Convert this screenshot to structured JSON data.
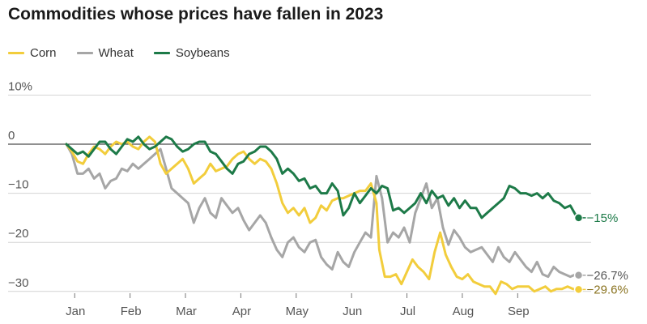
{
  "chart_data": {
    "type": "line",
    "title": "Commodities whose prices have fallen in 2023",
    "xlabel": "",
    "ylabel": "",
    "ylim": [
      -30,
      10
    ],
    "y_ticks": [
      10,
      0,
      -10,
      -20,
      -30
    ],
    "y_tick_labels": [
      "10%",
      "0",
      "−10",
      "−20",
      "−30"
    ],
    "x_range": [
      0,
      9.33
    ],
    "months": [
      "Jan",
      "Feb",
      "Mar",
      "Apr",
      "May",
      "Jun",
      "Jul",
      "Aug",
      "Sep"
    ],
    "series": [
      {
        "name": "Corn",
        "color": "#f2cd3c",
        "end_label": "−29.6%",
        "end_label_color": "#8a7320",
        "x": [
          0.0,
          0.1,
          0.2,
          0.3,
          0.4,
          0.5,
          0.6,
          0.7,
          0.8,
          0.9,
          1.0,
          1.1,
          1.2,
          1.3,
          1.4,
          1.5,
          1.6,
          1.7,
          1.8,
          1.9,
          2.0,
          2.1,
          2.2,
          2.3,
          2.4,
          2.5,
          2.6,
          2.7,
          2.8,
          2.9,
          3.0,
          3.1,
          3.2,
          3.3,
          3.4,
          3.5,
          3.6,
          3.7,
          3.8,
          3.9,
          4.0,
          4.1,
          4.2,
          4.3,
          4.4,
          4.5,
          4.6,
          4.7,
          4.8,
          4.9,
          5.0,
          5.1,
          5.2,
          5.3,
          5.4,
          5.5,
          5.6,
          5.65,
          5.75,
          5.85,
          5.95,
          6.05,
          6.15,
          6.25,
          6.35,
          6.45,
          6.55,
          6.65,
          6.75,
          6.85,
          6.95,
          7.05,
          7.15,
          7.25,
          7.35,
          7.45,
          7.55,
          7.65,
          7.75,
          7.85,
          7.95,
          8.05,
          8.15,
          8.25,
          8.35,
          8.45,
          8.55,
          8.65,
          8.75,
          8.85,
          8.95,
          9.05,
          9.15,
          9.25
        ],
        "values": [
          0.0,
          -1.5,
          -3.5,
          -4.0,
          -2.0,
          -0.5,
          -1.0,
          -2.0,
          -0.5,
          0.5,
          0.0,
          0.5,
          -0.5,
          -1.0,
          0.5,
          1.5,
          0.5,
          -4.0,
          -6.0,
          -5.0,
          -4.0,
          -3.0,
          -5.0,
          -8.0,
          -7.0,
          -6.0,
          -4.0,
          -5.5,
          -5.0,
          -4.5,
          -3.0,
          -2.0,
          -1.5,
          -3.0,
          -4.0,
          -3.0,
          -3.5,
          -5.0,
          -8.0,
          -12.0,
          -14.0,
          -13.0,
          -14.5,
          -13.0,
          -16.0,
          -15.0,
          -12.5,
          -13.5,
          -11.5,
          -11.0,
          -11.0,
          -10.5,
          -10.0,
          -9.5,
          -9.5,
          -8.0,
          -12.0,
          -21.5,
          -27.0,
          -27.0,
          -26.5,
          -28.5,
          -26.0,
          -23.5,
          -25.0,
          -26.0,
          -27.5,
          -22.0,
          -18.0,
          -22.5,
          -25.0,
          -27.0,
          -27.5,
          -26.5,
          -28.0,
          -28.5,
          -29.0,
          -29.0,
          -30.5,
          -28.0,
          -28.5,
          -29.5,
          -29.0,
          -29.0,
          -29.0,
          -30.0,
          -29.5,
          -29.0,
          -30.0,
          -29.5,
          -29.5,
          -29.0,
          -29.5,
          -29.6
        ]
      },
      {
        "name": "Wheat",
        "color": "#a6a6a6",
        "end_label": "−26.7%",
        "end_label_color": "#555555",
        "x": [
          0.0,
          0.1,
          0.2,
          0.3,
          0.4,
          0.5,
          0.6,
          0.7,
          0.8,
          0.9,
          1.0,
          1.1,
          1.2,
          1.3,
          1.4,
          1.5,
          1.6,
          1.7,
          1.8,
          1.9,
          2.0,
          2.1,
          2.2,
          2.3,
          2.4,
          2.5,
          2.6,
          2.7,
          2.8,
          2.9,
          3.0,
          3.1,
          3.2,
          3.3,
          3.4,
          3.5,
          3.6,
          3.7,
          3.8,
          3.9,
          4.0,
          4.1,
          4.2,
          4.3,
          4.4,
          4.5,
          4.6,
          4.7,
          4.8,
          4.9,
          5.0,
          5.1,
          5.2,
          5.3,
          5.4,
          5.5,
          5.6,
          5.7,
          5.8,
          5.9,
          6.0,
          6.1,
          6.2,
          6.3,
          6.4,
          6.5,
          6.6,
          6.7,
          6.8,
          6.9,
          7.0,
          7.1,
          7.2,
          7.3,
          7.4,
          7.5,
          7.6,
          7.7,
          7.8,
          7.9,
          8.0,
          8.1,
          8.2,
          8.3,
          8.4,
          8.5,
          8.6,
          8.7,
          8.8,
          8.9,
          9.0,
          9.1,
          9.2,
          9.25
        ],
        "values": [
          0.0,
          -2.0,
          -6.0,
          -6.0,
          -5.0,
          -7.0,
          -6.0,
          -9.0,
          -7.5,
          -7.0,
          -5.0,
          -5.5,
          -4.0,
          -5.0,
          -4.0,
          -3.0,
          -2.0,
          -1.0,
          -5.0,
          -9.0,
          -10.0,
          -11.0,
          -12.0,
          -16.0,
          -13.0,
          -11.0,
          -14.0,
          -15.0,
          -11.0,
          -12.5,
          -14.0,
          -13.0,
          -15.5,
          -17.5,
          -16.0,
          -14.5,
          -16.0,
          -19.0,
          -21.5,
          -23.0,
          -20.0,
          -19.0,
          -21.0,
          -22.0,
          -20.0,
          -19.5,
          -23.0,
          -24.5,
          -25.5,
          -22.0,
          -24.0,
          -25.0,
          -22.0,
          -20.0,
          -18.0,
          -19.0,
          -6.5,
          -11.0,
          -20.0,
          -18.0,
          -19.0,
          -17.0,
          -20.0,
          -14.0,
          -11.0,
          -8.0,
          -13.0,
          -11.0,
          -17.0,
          -20.5,
          -17.5,
          -19.0,
          -21.0,
          -22.0,
          -21.5,
          -21.0,
          -22.5,
          -24.0,
          -21.0,
          -23.0,
          -24.0,
          -22.0,
          -23.5,
          -25.0,
          -26.0,
          -24.0,
          -26.5,
          -27.0,
          -25.0,
          -26.0,
          -26.5,
          -27.0,
          -26.5,
          -26.7
        ]
      },
      {
        "name": "Soybeans",
        "color": "#1d7a48",
        "end_label": "−15%",
        "end_label_color": "#1d7a48",
        "x": [
          0.0,
          0.1,
          0.2,
          0.3,
          0.4,
          0.5,
          0.6,
          0.7,
          0.8,
          0.9,
          1.0,
          1.1,
          1.2,
          1.3,
          1.4,
          1.5,
          1.6,
          1.7,
          1.8,
          1.9,
          2.0,
          2.1,
          2.2,
          2.3,
          2.4,
          2.5,
          2.6,
          2.7,
          2.8,
          2.9,
          3.0,
          3.1,
          3.2,
          3.3,
          3.4,
          3.5,
          3.6,
          3.7,
          3.8,
          3.9,
          4.0,
          4.1,
          4.2,
          4.3,
          4.4,
          4.5,
          4.6,
          4.7,
          4.8,
          4.9,
          5.0,
          5.1,
          5.2,
          5.3,
          5.4,
          5.5,
          5.6,
          5.7,
          5.8,
          5.9,
          6.0,
          6.1,
          6.2,
          6.3,
          6.4,
          6.5,
          6.6,
          6.7,
          6.8,
          6.9,
          7.0,
          7.1,
          7.2,
          7.3,
          7.4,
          7.5,
          7.6,
          7.7,
          7.8,
          7.9,
          8.0,
          8.1,
          8.2,
          8.3,
          8.4,
          8.5,
          8.6,
          8.7,
          8.8,
          8.9,
          9.0,
          9.1,
          9.2,
          9.25
        ],
        "values": [
          0.0,
          -1.0,
          -2.0,
          -1.5,
          -2.5,
          -1.0,
          0.5,
          0.5,
          -1.0,
          -2.0,
          -0.5,
          1.0,
          0.5,
          1.5,
          0.0,
          -1.0,
          -0.5,
          0.5,
          1.5,
          1.0,
          -0.5,
          -1.5,
          -1.0,
          0.0,
          0.5,
          0.5,
          -1.5,
          -2.0,
          -3.5,
          -5.0,
          -6.0,
          -4.0,
          -3.5,
          -2.0,
          -1.5,
          -0.5,
          -0.5,
          -1.5,
          -3.0,
          -6.0,
          -5.0,
          -6.0,
          -7.5,
          -7.0,
          -9.0,
          -8.5,
          -10.0,
          -10.0,
          -8.0,
          -9.5,
          -14.5,
          -13.0,
          -10.0,
          -12.0,
          -10.5,
          -9.0,
          -10.0,
          -8.5,
          -9.0,
          -13.5,
          -13.0,
          -14.0,
          -13.0,
          -12.0,
          -10.0,
          -12.0,
          -9.5,
          -11.0,
          -10.5,
          -12.5,
          -11.0,
          -13.0,
          -11.5,
          -13.0,
          -13.0,
          -15.0,
          -14.0,
          -13.0,
          -12.0,
          -11.0,
          -8.5,
          -9.0,
          -10.0,
          -10.0,
          -10.5,
          -10.0,
          -11.0,
          -10.0,
          -11.5,
          -12.0,
          -13.0,
          -12.5,
          -14.5,
          -15.0
        ]
      }
    ]
  }
}
